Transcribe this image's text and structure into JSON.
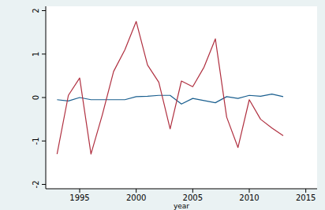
{
  "chart_data": {
    "type": "line",
    "x_label": "year",
    "x": [
      1993,
      1994,
      1995,
      1996,
      1997,
      1998,
      1999,
      2000,
      2001,
      2002,
      2003,
      2004,
      2005,
      2006,
      2007,
      2008,
      2009,
      2010,
      2011,
      2012,
      2013
    ],
    "series": [
      {
        "color": "#1a5f8f",
        "values": [
          -0.05,
          -0.08,
          0.0,
          -0.05,
          -0.05,
          -0.05,
          -0.05,
          0.02,
          0.03,
          0.05,
          0.05,
          -0.15,
          -0.02,
          -0.07,
          -0.12,
          0.02,
          -0.02,
          0.05,
          0.03,
          0.08,
          0.02
        ]
      },
      {
        "color": "#b03040",
        "values": [
          -1.3,
          0.05,
          0.45,
          -1.3,
          -0.4,
          0.6,
          1.1,
          1.75,
          0.75,
          0.35,
          -0.72,
          0.38,
          0.25,
          0.7,
          1.35,
          -0.45,
          -1.15,
          -0.05,
          -0.5,
          -0.7,
          -0.88
        ]
      }
    ],
    "xlim": [
      1992,
      2016
    ],
    "xticks": [
      1995,
      2000,
      2005,
      2010,
      2015
    ],
    "ylim": [
      -2.1,
      2.1
    ],
    "yticks": [
      -2,
      -1,
      0,
      1,
      2
    ],
    "grid": false
  }
}
